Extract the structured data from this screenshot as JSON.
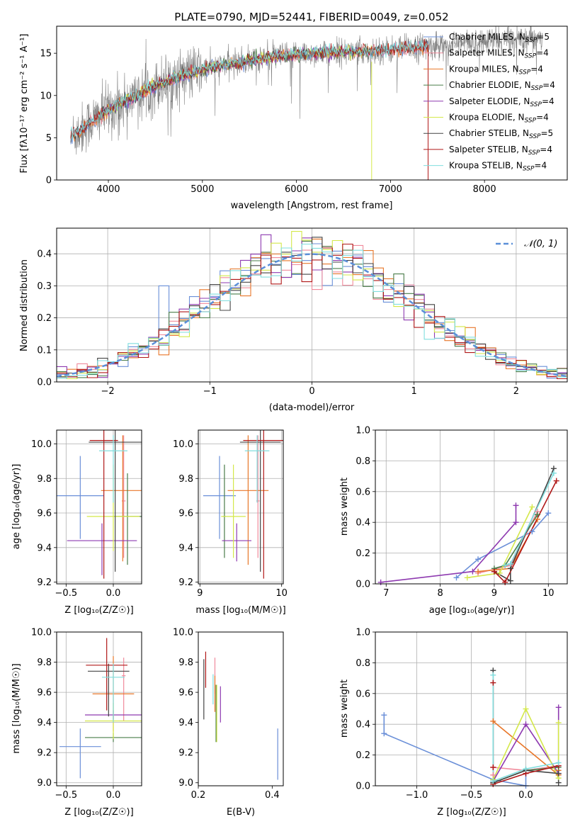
{
  "colors": {
    "Chabrier MILES": "#6a8fd8",
    "Salpeter MILES": "#f08a9b",
    "Kroupa MILES": "#e8772a",
    "Chabrier ELODIE": "#4a7d4a",
    "Salpeter ELODIE": "#8e3ab0",
    "Kroupa ELODIE": "#d4e84a",
    "Chabrier STELIB": "#444444",
    "Salpeter STELIB": "#b01818",
    "Kroupa STELIB": "#80dede",
    "data": "#808080",
    "normal": "#5b8fd8"
  },
  "chart_data": [
    {
      "id": "spectrum",
      "type": "line",
      "title": "PLATE=0790, MJD=52441, FIBERID=0049, z=0.052",
      "xlabel": "wavelength [Angstrom, rest frame]",
      "ylabel": "Flux [fλ10⁻¹⁷ erg cm⁻² s⁻¹ A⁻¹]",
      "xlim": [
        3450,
        8880
      ],
      "ylim": [
        0,
        18.2
      ],
      "xticks": [
        4000,
        5000,
        6000,
        7000,
        8000
      ],
      "yticks": [
        0,
        5,
        10,
        15
      ],
      "grid": false,
      "legend_position": "right",
      "legend": [
        {
          "model": "Chabrier MILES",
          "label": "Chabrier MILES, N",
          "sub": "SSP",
          "tail": "=5"
        },
        {
          "model": "Salpeter MILES",
          "label": "Salpeter MILES, N",
          "sub": "SSP",
          "tail": "=4"
        },
        {
          "model": "Kroupa MILES",
          "label": "Kroupa MILES, N",
          "sub": "SSP",
          "tail": "=4"
        },
        {
          "model": "Chabrier ELODIE",
          "label": "Chabrier ELODIE, N",
          "sub": "SSP",
          "tail": "=4"
        },
        {
          "model": "Salpeter ELODIE",
          "label": "Salpeter ELODIE, N",
          "sub": "SSP",
          "tail": "=4"
        },
        {
          "model": "Kroupa ELODIE",
          "label": "Kroupa ELODIE, N",
          "sub": "SSP",
          "tail": "=4"
        },
        {
          "model": "Chabrier STELIB",
          "label": "Chabrier STELIB, N",
          "sub": "SSP",
          "tail": "=5"
        },
        {
          "model": "Salpeter STELIB",
          "label": "Salpeter STELIB, N",
          "sub": "SSP",
          "tail": "=4"
        },
        {
          "model": "Kroupa STELIB",
          "label": "Kroupa STELIB, N",
          "sub": "SSP",
          "tail": "=4"
        }
      ],
      "observed_continuum": {
        "x": [
          3600,
          3700,
          3800,
          3900,
          4000,
          4200,
          4400,
          4600,
          4800,
          5000,
          5200,
          5400,
          5600,
          5800,
          6000,
          6200,
          6400,
          6600,
          6800,
          7000,
          7200,
          7400,
          7600,
          7800,
          8000,
          8200,
          8400,
          8600
        ],
        "y": [
          5.2,
          5.8,
          6.8,
          7.5,
          8.3,
          9.4,
          10.6,
          11.6,
          12.4,
          13.0,
          13.5,
          13.9,
          14.3,
          14.6,
          14.8,
          15.0,
          15.1,
          15.2,
          15.3,
          15.4,
          15.6,
          15.8,
          16.0,
          16.2,
          16.4,
          16.6,
          16.8,
          17.0
        ]
      },
      "model_coverage": {
        "MILES": [
          3600,
          7400
        ],
        "ELODIE": [
          3900,
          6800
        ],
        "STELIB": [
          3600,
          7400
        ]
      }
    },
    {
      "id": "residuals",
      "type": "histogram",
      "xlabel": "(data-model)/error",
      "ylabel": "Normed distribution",
      "xlim": [
        -2.5,
        2.5
      ],
      "ylim": [
        0,
        0.48
      ],
      "xticks": [
        -2,
        -1,
        0,
        1,
        2
      ],
      "yticks": [
        0.0,
        0.1,
        0.2,
        0.3,
        0.4
      ],
      "grid": true,
      "legend_position": "upper right",
      "reference_curve": {
        "label": "𝒩(0, 1)",
        "mean": 0,
        "sigma": 1,
        "style": "dashed"
      },
      "bin_width": 0.1
    },
    {
      "id": "age-vs-metallicity",
      "type": "errorbar",
      "xlabel": "Z [log₁₀(Z/Z☉)]",
      "ylabel": "age  [log₁₀(age/yr)]",
      "xlim": [
        -0.6,
        0.3
      ],
      "ylim": [
        9.19,
        10.08
      ],
      "xticks": [
        -0.5,
        0.0
      ],
      "yticks": [
        9.2,
        9.4,
        9.6,
        9.8,
        10.0
      ],
      "grid": true,
      "points": [
        {
          "model": "Chabrier MILES",
          "x": -0.35,
          "xerr": 0.25,
          "y": 9.7,
          "yerr": [
            0.25,
            0.23
          ]
        },
        {
          "model": "Salpeter MILES",
          "x": 0.11,
          "xerr": 0.02,
          "y": 9.67,
          "yerr": [
            0.33,
            0.38
          ]
        },
        {
          "model": "Kroupa MILES",
          "x": 0.1,
          "xerr": 0.23,
          "y": 9.73,
          "yerr": [
            0.41,
            0.32
          ]
        },
        {
          "model": "Chabrier ELODIE",
          "x": 0.15,
          "xerr": 0.15,
          "y": 9.58,
          "yerr": [
            0.28,
            0.25
          ]
        },
        {
          "model": "Salpeter ELODIE",
          "x": -0.12,
          "xerr": 0.37,
          "y": 9.44,
          "yerr": [
            0.2,
            0.1
          ]
        },
        {
          "model": "Kroupa ELODIE",
          "x": 0.0,
          "xerr": 0.28,
          "y": 9.58,
          "yerr": [
            0.2,
            0.3
          ]
        },
        {
          "model": "Chabrier STELIB",
          "x": 0.02,
          "xerr": 0.28,
          "y": 10.01,
          "yerr": [
            0.75,
            0.08
          ]
        },
        {
          "model": "Salpeter STELIB",
          "x": -0.1,
          "xerr": 0.15,
          "y": 10.02,
          "yerr": [
            0.8,
            0.11
          ]
        },
        {
          "model": "Kroupa STELIB",
          "x": 0.0,
          "xerr": 0.15,
          "y": 9.96,
          "yerr": [
            0.3,
            0.09
          ]
        }
      ]
    },
    {
      "id": "age-vs-mass",
      "type": "errorbar",
      "xlabel": "mass [log₁₀(M/M☉)]",
      "ylabel": "",
      "xlim": [
        8.98,
        10.02
      ],
      "ylim": [
        9.19,
        10.08
      ],
      "xticks": [
        9,
        10
      ],
      "yticks": [
        9.2,
        9.4,
        9.6,
        9.8,
        10.0
      ],
      "grid": true,
      "points": [
        {
          "model": "Chabrier MILES",
          "x": 9.24,
          "xerr": 0.2,
          "y": 9.7,
          "yerr": [
            0.25,
            0.23
          ]
        },
        {
          "model": "Salpeter MILES",
          "x": 9.71,
          "xerr": 0.02,
          "y": 9.67,
          "yerr": [
            0.33,
            0.38
          ]
        },
        {
          "model": "Kroupa MILES",
          "x": 9.59,
          "xerr": 0.25,
          "y": 9.73,
          "yerr": [
            0.43,
            0.32
          ]
        },
        {
          "model": "Chabrier ELODIE",
          "x": 9.3,
          "xerr": 0.02,
          "y": 9.58,
          "yerr": [
            0.24,
            0.3
          ]
        },
        {
          "model": "Salpeter ELODIE",
          "x": 9.45,
          "xerr": 0.18,
          "y": 9.44,
          "yerr": [
            0.12,
            0.1
          ]
        },
        {
          "model": "Kroupa ELODIE",
          "x": 9.41,
          "xerr": 0.15,
          "y": 9.58,
          "yerr": [
            0.24,
            0.3
          ]
        },
        {
          "model": "Chabrier STELIB",
          "x": 9.74,
          "xerr": 0.25,
          "y": 10.01,
          "yerr": [
            0.75,
            0.08
          ]
        },
        {
          "model": "Salpeter STELIB",
          "x": 9.78,
          "xerr": 0.25,
          "y": 10.02,
          "yerr": [
            0.8,
            0.11
          ]
        },
        {
          "model": "Kroupa STELIB",
          "x": 9.7,
          "xerr": 0.15,
          "y": 9.96,
          "yerr": [
            0.3,
            0.09
          ]
        }
      ]
    },
    {
      "id": "mass-weight-vs-age",
      "type": "line",
      "xlabel": "age  [log₁₀(age/yr)]",
      "ylabel": "mass weight",
      "xlim": [
        6.8,
        10.35
      ],
      "ylim": [
        0,
        1.0
      ],
      "xticks": [
        7,
        8,
        9,
        10
      ],
      "yticks": [
        0.0,
        0.2,
        0.4,
        0.6,
        0.8,
        1.0
      ],
      "grid": true,
      "series": [
        {
          "model": "Chabrier MILES",
          "x": [
            8.3,
            8.7,
            9.7,
            10.0
          ],
          "y": [
            0.04,
            0.16,
            0.34,
            0.46
          ]
        },
        {
          "model": "Salpeter MILES",
          "x": [
            8.7,
            9.3,
            9.8
          ],
          "y": [
            0.07,
            0.12,
            0.47
          ]
        },
        {
          "model": "Kroupa MILES",
          "x": [
            8.7,
            9.3,
            9.8
          ],
          "y": [
            0.08,
            0.1,
            0.42
          ]
        },
        {
          "model": "Chabrier ELODIE",
          "x": [
            9.0,
            9.2,
            9.8
          ],
          "y": [
            0.1,
            0.12,
            0.45
          ]
        },
        {
          "model": "Salpeter ELODIE",
          "x": [
            6.9,
            8.6,
            9.4,
            9.4
          ],
          "y": [
            0.01,
            0.08,
            0.4,
            0.51
          ]
        },
        {
          "model": "Kroupa ELODIE",
          "x": [
            8.5,
            9.1,
            9.7
          ],
          "y": [
            0.04,
            0.07,
            0.5
          ]
        },
        {
          "model": "Chabrier STELIB",
          "x": [
            9.0,
            9.3,
            9.3,
            10.1
          ],
          "y": [
            0.08,
            0.02,
            0.1,
            0.75
          ]
        },
        {
          "model": "Salpeter STELIB",
          "x": [
            9.0,
            9.2,
            10.15
          ],
          "y": [
            0.08,
            0.01,
            0.67
          ]
        },
        {
          "model": "Kroupa STELIB",
          "x": [
            9.2,
            9.3,
            10.1
          ],
          "y": [
            0.12,
            0.13,
            0.72
          ]
        }
      ]
    },
    {
      "id": "mass-vs-metallicity",
      "type": "errorbar",
      "xlabel": "Z [log₁₀(Z/Z☉)]",
      "ylabel": "mass [log₁₀(M/M☉)]",
      "xlim": [
        -0.6,
        0.3
      ],
      "ylim": [
        8.98,
        10.0
      ],
      "xticks": [
        -0.5,
        0.0
      ],
      "yticks": [
        9.0,
        9.2,
        9.4,
        9.6,
        9.8,
        10.0
      ],
      "grid": true,
      "points": [
        {
          "model": "Chabrier MILES",
          "x": -0.35,
          "xerr": 0.22,
          "y": 9.24,
          "yerr": [
            0.21,
            0.12
          ]
        },
        {
          "model": "Salpeter MILES",
          "x": 0.11,
          "xerr": 0.02,
          "y": 9.71,
          "yerr": [
            0.3,
            0.12
          ]
        },
        {
          "model": "Kroupa MILES",
          "x": 0.0,
          "xerr": 0.22,
          "y": 9.59,
          "yerr": [
            0.25,
            0.25
          ]
        },
        {
          "model": "Chabrier ELODIE",
          "x": 0.0,
          "xerr": 0.3,
          "y": 9.3,
          "yerr": [
            0.03,
            0.03
          ]
        },
        {
          "model": "Salpeter ELODIE",
          "x": 0.0,
          "xerr": 0.3,
          "y": 9.45,
          "yerr": [
            0.03,
            0.03
          ]
        },
        {
          "model": "Kroupa ELODIE",
          "x": 0.0,
          "xerr": 0.3,
          "y": 9.41,
          "yerr": [
            0.12,
            0.12
          ]
        },
        {
          "model": "Chabrier STELIB",
          "x": -0.05,
          "xerr": 0.22,
          "y": 9.74,
          "yerr": [
            0.3,
            0.05
          ]
        },
        {
          "model": "Salpeter STELIB",
          "x": -0.07,
          "xerr": 0.22,
          "y": 9.78,
          "yerr": [
            0.3,
            0.18
          ]
        },
        {
          "model": "Kroupa STELIB",
          "x": 0.0,
          "xerr": 0.12,
          "y": 9.7,
          "yerr": [
            0.3,
            0.09
          ]
        }
      ]
    },
    {
      "id": "reddening",
      "type": "errorbar",
      "xlabel": "E(B-V)",
      "ylabel": "",
      "xlim": [
        0.2,
        0.43
      ],
      "ylim": [
        8.98,
        10.0
      ],
      "xticks": [
        0.2,
        0.4
      ],
      "yticks": [
        9.0,
        9.2,
        9.4,
        9.6,
        9.8,
        10.0
      ],
      "grid": false,
      "points": [
        {
          "model": "Chabrier MILES",
          "x": 0.415,
          "xerr": 0,
          "y": 9.19,
          "yerr": [
            0.17,
            0.17
          ]
        },
        {
          "model": "Salpeter MILES",
          "x": 0.245,
          "xerr": 0,
          "y": 9.71,
          "yerr": [
            0.12,
            0.12
          ]
        },
        {
          "model": "Kroupa MILES",
          "x": 0.245,
          "xerr": 0,
          "y": 9.59,
          "yerr": [
            0.12,
            0.12
          ]
        },
        {
          "model": "Chabrier ELODIE",
          "x": 0.248,
          "xerr": 0,
          "y": 9.45,
          "yerr": [
            0.18,
            0.2
          ]
        },
        {
          "model": "Salpeter ELODIE",
          "x": 0.26,
          "xerr": 0,
          "y": 9.52,
          "yerr": [
            0.12,
            0.12
          ]
        },
        {
          "model": "Kroupa ELODIE",
          "x": 0.25,
          "xerr": 0,
          "y": 9.45,
          "yerr": [
            0.18,
            0.2
          ]
        },
        {
          "model": "Chabrier STELIB",
          "x": 0.215,
          "xerr": 0,
          "y": 9.6,
          "yerr": [
            0.18,
            0.22
          ]
        },
        {
          "model": "Salpeter STELIB",
          "x": 0.22,
          "xerr": 0,
          "y": 9.75,
          "yerr": [
            0.12,
            0.12
          ]
        },
        {
          "model": "Kroupa STELIB",
          "x": 0.24,
          "xerr": 0,
          "y": 9.62,
          "yerr": [
            0.1,
            0.1
          ]
        }
      ]
    },
    {
      "id": "mass-weight-vs-metallicity",
      "type": "line",
      "xlabel": "Z [log₁₀(Z/Z☉)]",
      "ylabel": "mass weight",
      "xlim": [
        -1.38,
        0.38
      ],
      "ylim": [
        0,
        1.0
      ],
      "xticks": [
        -1.0,
        -0.5,
        0.0
      ],
      "yticks": [
        0.0,
        0.2,
        0.4,
        0.6,
        0.8,
        1.0
      ],
      "grid": true,
      "series": [
        {
          "model": "Chabrier MILES",
          "x": [
            -1.3,
            -1.3,
            -0.3,
            0.0,
            0.0,
            0.3
          ],
          "y": [
            0.46,
            0.34,
            0.04,
            0.0,
            0.1,
            0.13
          ]
        },
        {
          "model": "Salpeter MILES",
          "x": [
            -0.3,
            -0.3,
            0.0,
            0.3
          ],
          "y": [
            0.07,
            0.12,
            0.1,
            0.13
          ]
        },
        {
          "model": "Kroupa MILES",
          "x": [
            -0.3,
            0.3,
            0.3
          ],
          "y": [
            0.42,
            0.07,
            0.1
          ]
        },
        {
          "model": "Chabrier ELODIE",
          "x": [
            -0.3,
            0.0,
            0.3
          ],
          "y": [
            0.02,
            0.1,
            0.12
          ]
        },
        {
          "model": "Salpeter ELODIE",
          "x": [
            -0.3,
            0.0,
            0.3,
            0.3
          ],
          "y": [
            0.03,
            0.4,
            0.08,
            0.51
          ]
        },
        {
          "model": "Kroupa ELODIE",
          "x": [
            -0.3,
            0.0,
            0.3,
            0.3
          ],
          "y": [
            0.04,
            0.5,
            0.05,
            0.41
          ]
        },
        {
          "model": "Chabrier STELIB",
          "x": [
            -0.3,
            -0.3,
            0.0,
            0.3,
            0.3
          ],
          "y": [
            0.75,
            0.02,
            0.1,
            0.08,
            0.02
          ]
        },
        {
          "model": "Salpeter STELIB",
          "x": [
            -0.3,
            -0.3,
            -0.3,
            0.0,
            0.3
          ],
          "y": [
            0.67,
            0.12,
            0.01,
            0.08,
            0.13
          ]
        },
        {
          "model": "Kroupa STELIB",
          "x": [
            -0.3,
            -0.3,
            0.0,
            0.3
          ],
          "y": [
            0.72,
            0.03,
            0.11,
            0.15
          ]
        }
      ]
    }
  ]
}
